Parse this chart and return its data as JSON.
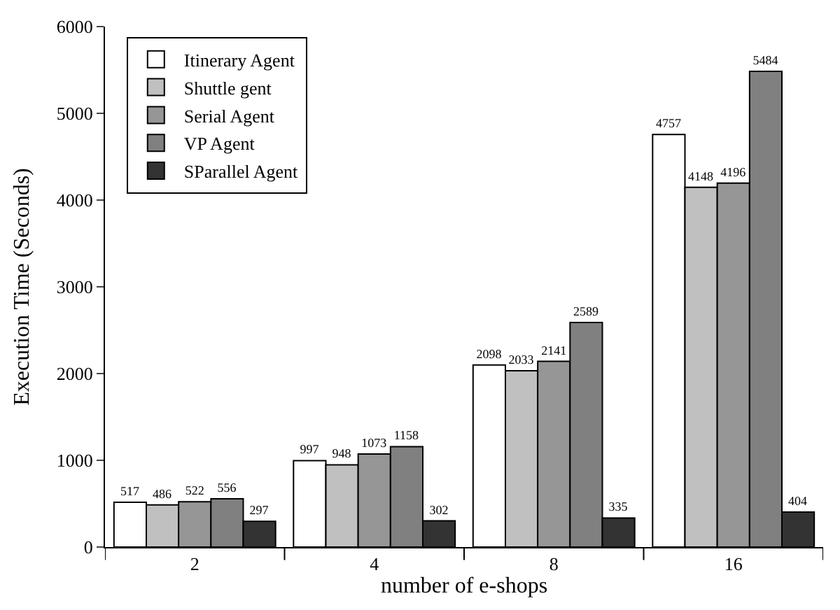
{
  "chart_data": {
    "type": "bar",
    "xlabel": "number of e-shops",
    "ylabel": "Execution Time (Seconds)",
    "categories": [
      "2",
      "4",
      "8",
      "16"
    ],
    "series": [
      {
        "name": "Itinerary Agent",
        "color": "#ffffff",
        "values": [
          517,
          997,
          2098,
          4757
        ]
      },
      {
        "name": "Shuttle gent",
        "color": "#c0c0c0",
        "values": [
          486,
          948,
          2033,
          4148
        ]
      },
      {
        "name": "Serial Agent",
        "color": "#969696",
        "values": [
          522,
          1073,
          2141,
          4196
        ]
      },
      {
        "name": "VP Agent",
        "color": "#808080",
        "values": [
          556,
          1158,
          2589,
          5484
        ]
      },
      {
        "name": "SParallel Agent",
        "color": "#333333",
        "values": [
          297,
          302,
          335,
          404
        ]
      }
    ],
    "ylim": [
      0,
      6000
    ],
    "yticks": [
      0,
      1000,
      2000,
      3000,
      4000,
      5000,
      6000
    ],
    "grid": false,
    "legend": "top left",
    "data_labels": true
  }
}
